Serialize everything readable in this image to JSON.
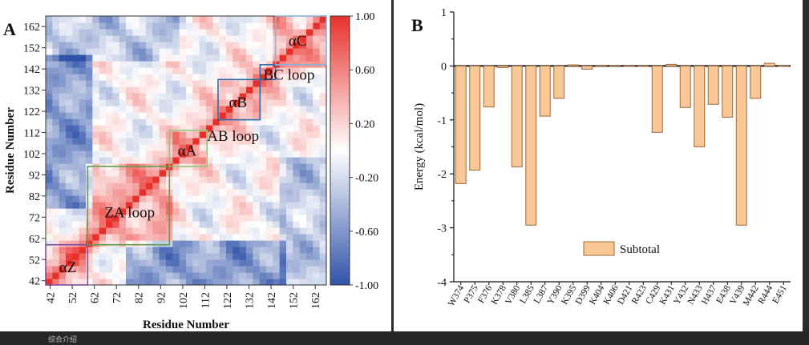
{
  "figure": {
    "bottom_caption": "综合介绍"
  },
  "chart_data": [
    {
      "panel_label": "A",
      "type": "heatmap",
      "title": "",
      "xlabel": "Residue Number",
      "ylabel": "Residue Number",
      "x_ticks": [
        42,
        52,
        62,
        72,
        82,
        92,
        102,
        112,
        122,
        132,
        142,
        152,
        162
      ],
      "y_ticks": [
        42,
        52,
        62,
        72,
        82,
        92,
        102,
        112,
        122,
        132,
        142,
        152,
        162
      ],
      "range": [
        40,
        167
      ],
      "colorbar": {
        "ticks": [
          "1.00",
          "0.60",
          "0.20",
          "-0.20",
          "-0.60",
          "-1.00"
        ],
        "tick_values": [
          1.0,
          0.6,
          0.2,
          -0.2,
          -0.6,
          -1.0
        ],
        "colors": {
          "high": "#e8302b",
          "mid": "#ffffff",
          "low": "#2f52a8"
        }
      },
      "regions": [
        {
          "label": "αZ",
          "start": 40,
          "end": 59,
          "color": "#7a4fa2"
        },
        {
          "label": "ZA loop",
          "start": 59,
          "end": 96,
          "color": "#5f9e4a"
        },
        {
          "label": "αA",
          "start": 96,
          "end": 113,
          "color": "#8fc37a"
        },
        {
          "label": "AB loop",
          "start": 113,
          "end": 118,
          "color": "#e8302b"
        },
        {
          "label": "αB",
          "start": 118,
          "end": 137,
          "color": "#2f6aa8"
        },
        {
          "label": "BC loop",
          "start": 137,
          "end": 144,
          "color": "#2f6aa8"
        },
        {
          "label": "αC",
          "start": 144,
          "end": 167,
          "color": "#8ab3d8"
        }
      ]
    },
    {
      "panel_label": "B",
      "type": "bar",
      "title": "",
      "xlabel": "",
      "ylabel": "Energy (kcal/mol)",
      "ylim": [
        -4,
        1
      ],
      "yticks": [
        1,
        0,
        -1,
        -2,
        -3,
        -4
      ],
      "legend": {
        "label": "Subtotal",
        "position": "bottom-center"
      },
      "bar_color": "#f9c896",
      "bar_edge": "#9a6a3a",
      "categories": [
        "W374",
        "P375",
        "F376",
        "K378",
        "V380",
        "L385",
        "L387",
        "Y390",
        "K395",
        "D399",
        "K404",
        "K406",
        "D421",
        "R423",
        "C429",
        "K431",
        "Y432",
        "N433",
        "H437",
        "E438",
        "V439",
        "M442",
        "R444",
        "E451"
      ],
      "series": [
        {
          "values": [
            -2.18,
            -1.93,
            -0.76,
            -0.03,
            -1.87,
            -2.95,
            -0.93,
            -0.6,
            0.02,
            -0.06,
            0.01,
            0.01,
            0.0,
            0.0,
            -1.23,
            0.03,
            -0.77,
            -1.5,
            -0.71,
            -0.95,
            -2.95,
            -0.6,
            0.05,
            0.0
          ]
        }
      ]
    }
  ]
}
